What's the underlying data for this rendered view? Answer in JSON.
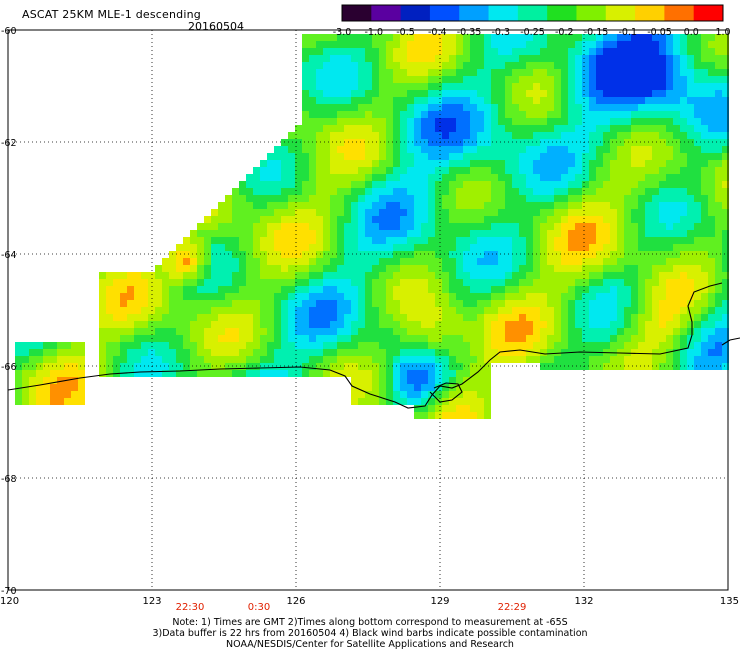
{
  "header": {
    "title": "ASCAT 25KM MLE-1 descending",
    "date": "20160504"
  },
  "colorbar": {
    "labels": [
      "-3.0",
      "-1.0",
      "-0.5",
      "-0.4",
      "-0.35",
      "-0.3",
      "-0.25",
      "-0.2",
      "-0.15",
      "-0.1",
      "-0.05",
      "0.0",
      "1.0"
    ],
    "colors": [
      "#2a0030",
      "#5a00a0",
      "#0020c0",
      "#0050ff",
      "#00a0ff",
      "#00e8f0",
      "#00f0a0",
      "#20e020",
      "#80f000",
      "#d8f000",
      "#ffd000",
      "#ff7000",
      "#ff0000"
    ]
  },
  "axes": {
    "lat_labels": [
      "-60",
      "-62",
      "-64",
      "-66",
      "-68",
      "-70"
    ],
    "lon_labels": [
      "120",
      "123",
      "126",
      "129",
      "132",
      "135"
    ]
  },
  "times": [
    "22:30",
    "0:30",
    "22:29"
  ],
  "notes": {
    "line1": "Note: 1) Times are GMT 2)Times along bottom correspond to measurement at -65S",
    "line2": "3)Data buffer is 22 hrs from 20160504 4) Black wind barbs indicate possible contamination",
    "line3": "NOAA/NESDIS/Center for Satellite Applications and Research"
  }
}
